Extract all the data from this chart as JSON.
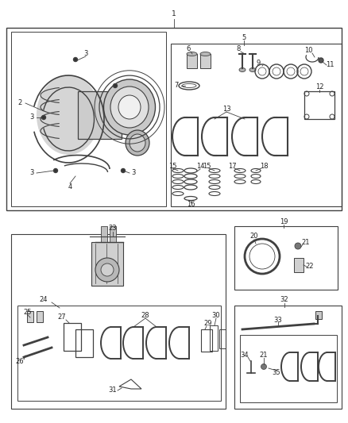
{
  "bg_color": "#ffffff",
  "line_color": "#404040",
  "text_color": "#222222",
  "fig_width": 4.38,
  "fig_height": 5.33,
  "dpi": 100
}
